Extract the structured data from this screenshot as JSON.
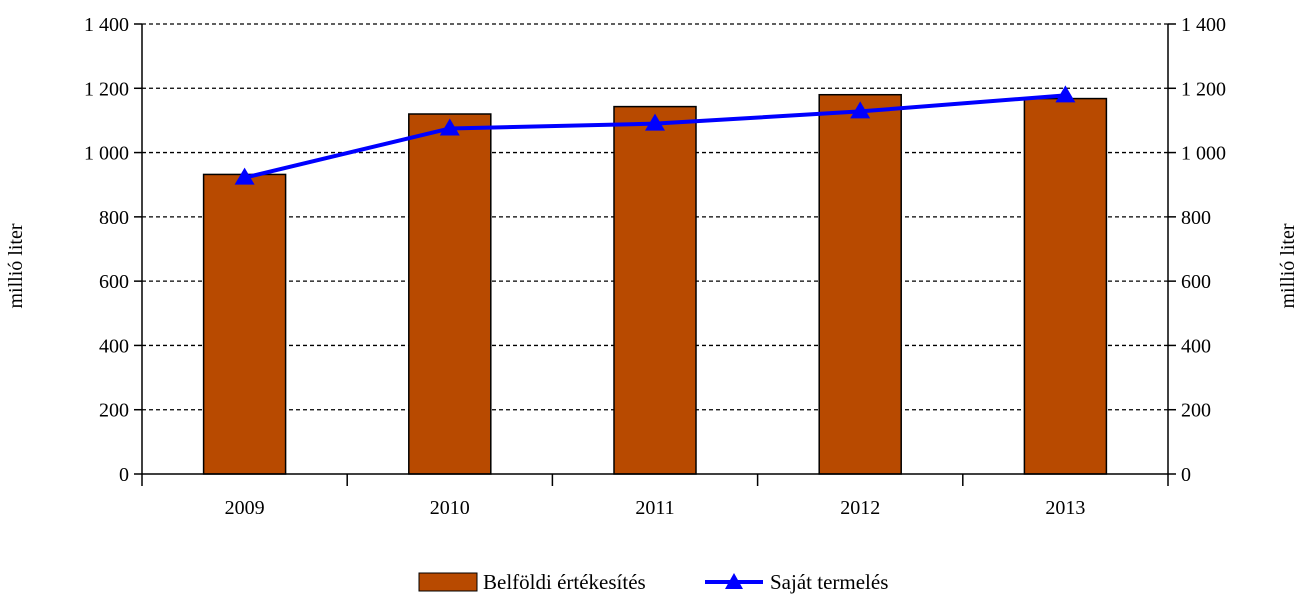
{
  "chart_data": {
    "type": "bar",
    "categories": [
      "2009",
      "2010",
      "2011",
      "2012",
      "2013"
    ],
    "series": [
      {
        "name": "Belföldi értékesítés",
        "type": "bar",
        "values": [
          932,
          1120,
          1143,
          1180,
          1168
        ],
        "color": "#b84a00"
      },
      {
        "name": "Saját termelés",
        "type": "line",
        "marker": "triangle",
        "values": [
          922,
          1075,
          1090,
          1128,
          1178
        ],
        "color": "#0000ff"
      }
    ],
    "ylabel_left": "millió liter",
    "ylabel_right": "millió liter",
    "ylim": [
      0,
      1400
    ],
    "yticks": [
      0,
      200,
      400,
      600,
      800,
      1000,
      1200,
      1400
    ],
    "ytick_labels": [
      "0",
      "200",
      "400",
      "600",
      "800",
      "1 000",
      "1 200",
      "1 400"
    ],
    "grid": "horizontal dashed",
    "legend_position": "bottom-center"
  }
}
